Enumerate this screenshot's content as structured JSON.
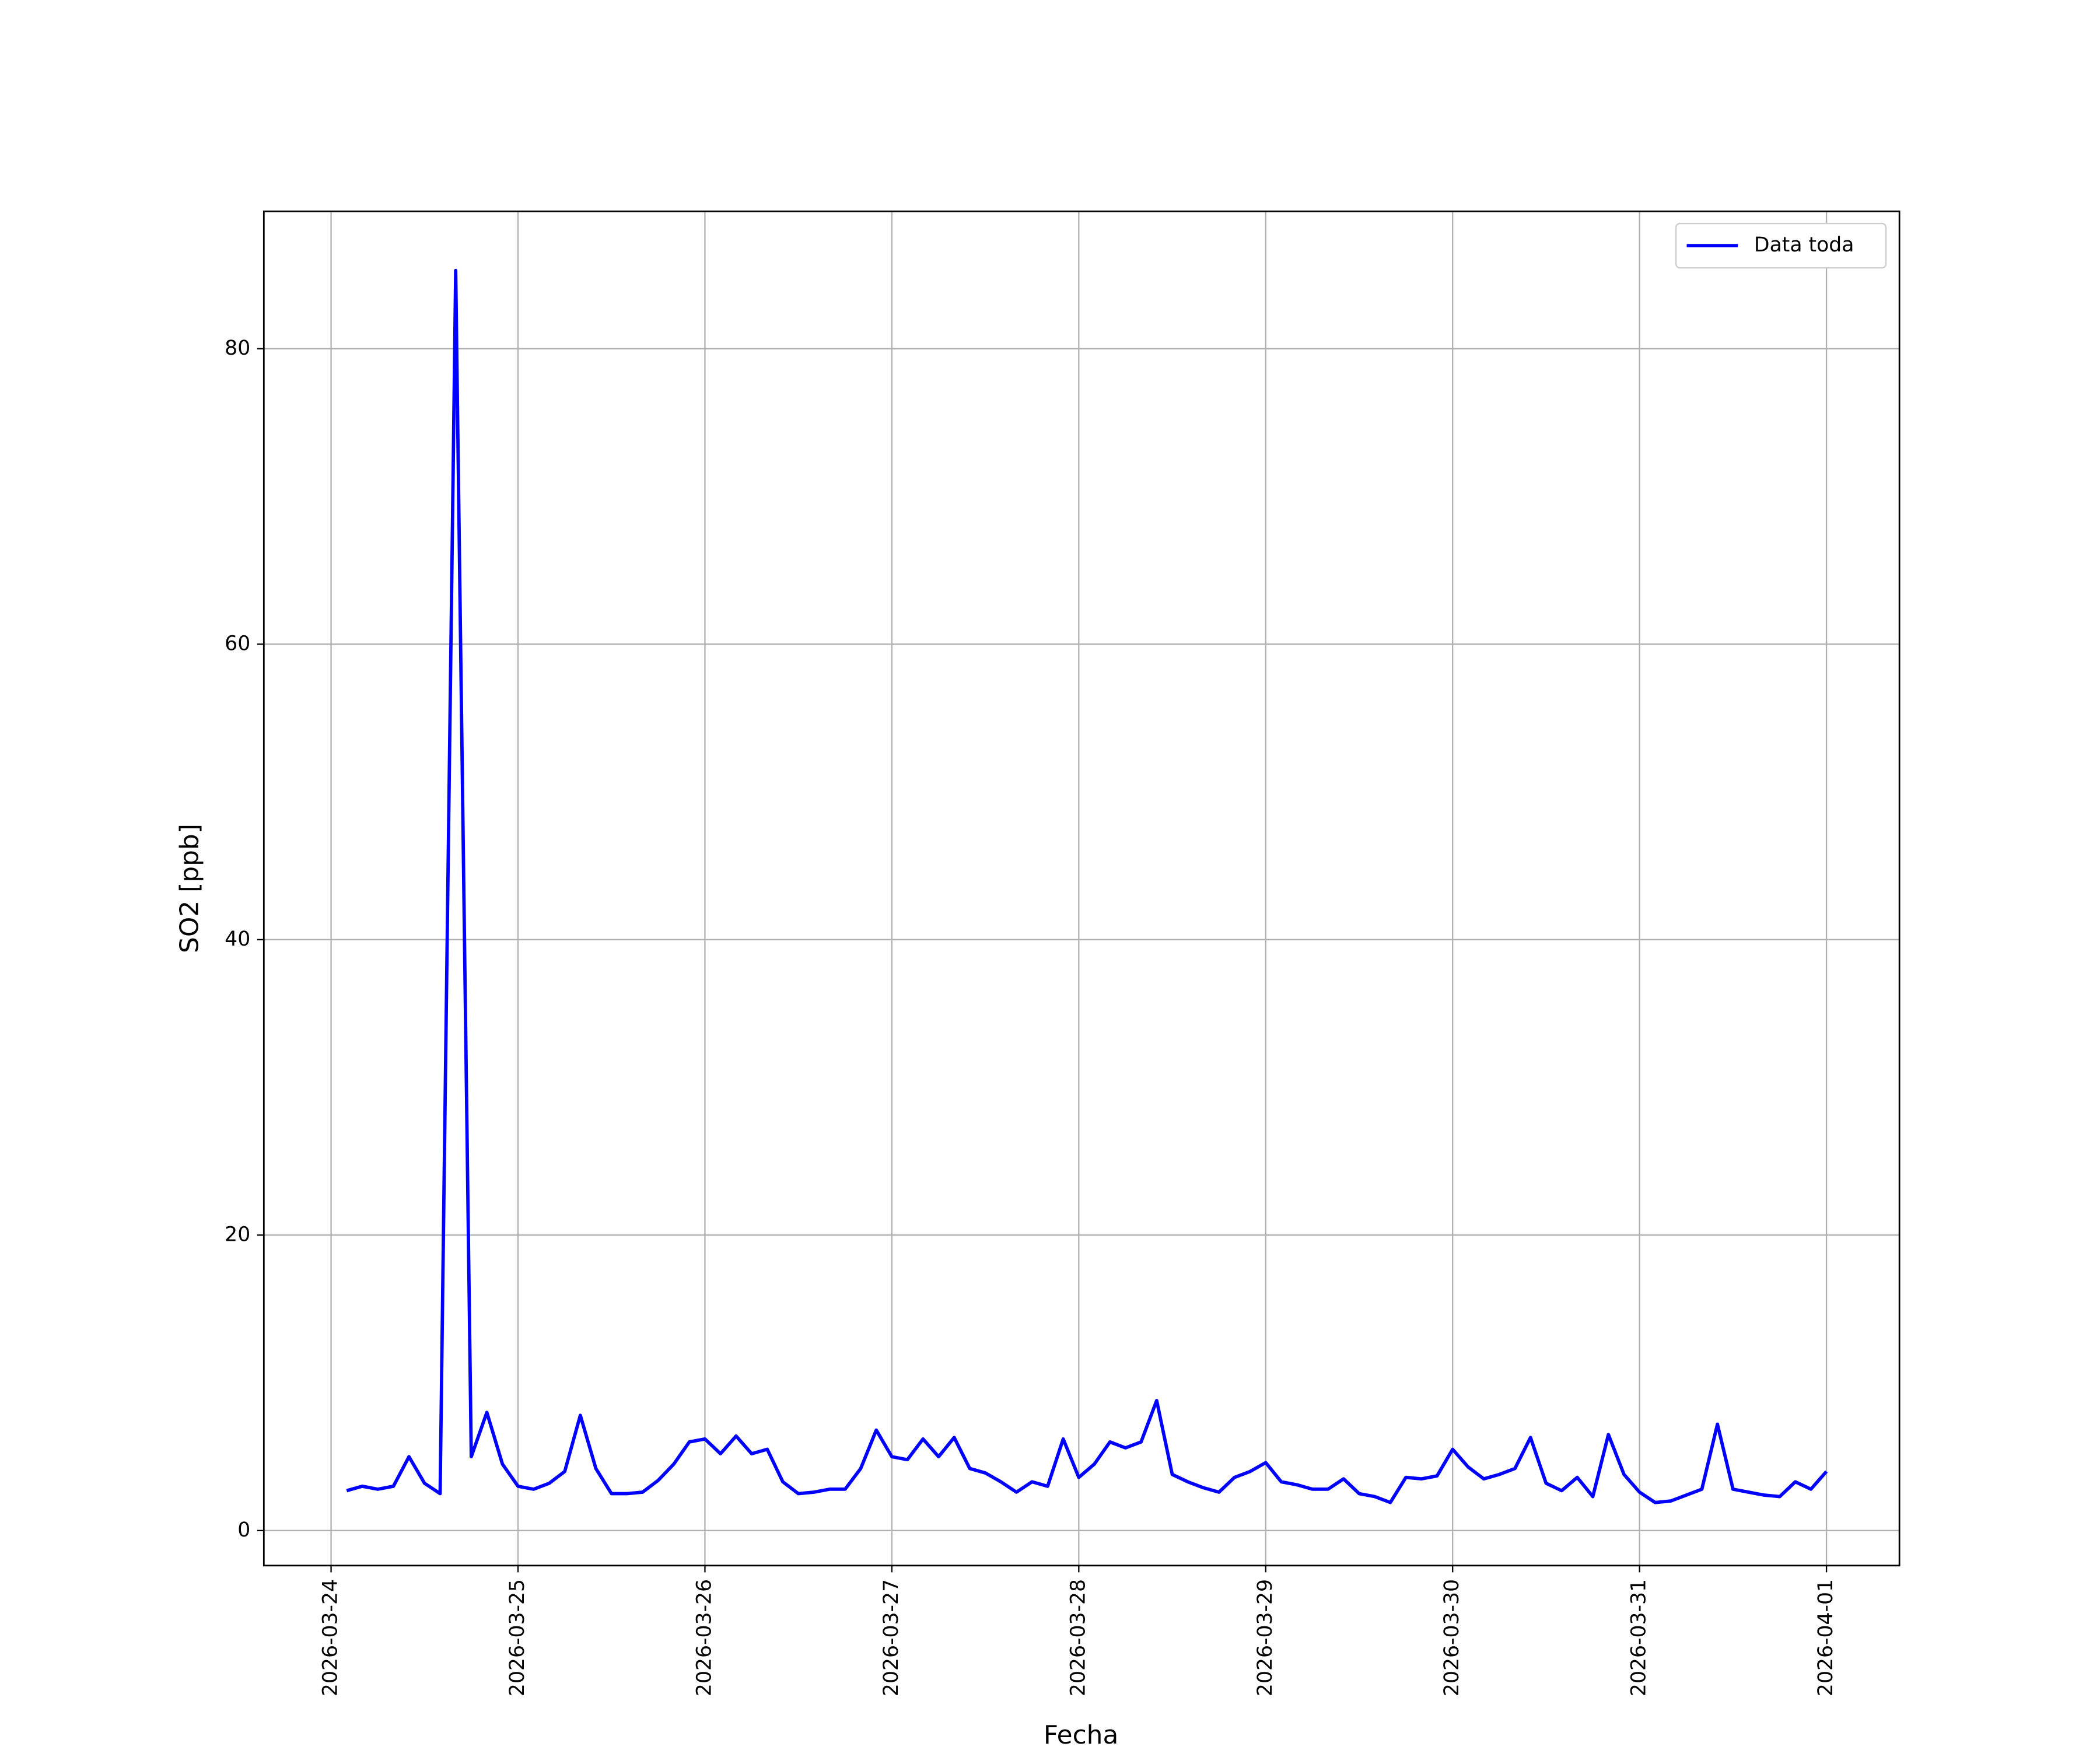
{
  "chart_data": {
    "type": "line",
    "x_label": "Fecha",
    "y_label": "SO2 [ppb]",
    "x": [
      "2026-03-24 02:00",
      "2026-03-24 04:00",
      "2026-03-24 06:00",
      "2026-03-24 08:00",
      "2026-03-24 10:00",
      "2026-03-24 12:00",
      "2026-03-24 14:00",
      "2026-03-24 16:00",
      "2026-03-24 18:00",
      "2026-03-24 20:00",
      "2026-03-24 22:00",
      "2026-03-25 00:00",
      "2026-03-25 02:00",
      "2026-03-25 04:00",
      "2026-03-25 06:00",
      "2026-03-25 08:00",
      "2026-03-25 10:00",
      "2026-03-25 12:00",
      "2026-03-25 14:00",
      "2026-03-25 16:00",
      "2026-03-25 18:00",
      "2026-03-25 20:00",
      "2026-03-25 22:00",
      "2026-03-26 00:00",
      "2026-03-26 02:00",
      "2026-03-26 04:00",
      "2026-03-26 06:00",
      "2026-03-26 08:00",
      "2026-03-26 10:00",
      "2026-03-26 12:00",
      "2026-03-26 14:00",
      "2026-03-26 16:00",
      "2026-03-26 18:00",
      "2026-03-26 20:00",
      "2026-03-26 22:00",
      "2026-03-27 00:00",
      "2026-03-27 02:00",
      "2026-03-27 04:00",
      "2026-03-27 06:00",
      "2026-03-27 08:00",
      "2026-03-27 10:00",
      "2026-03-27 12:00",
      "2026-03-27 14:00",
      "2026-03-27 16:00",
      "2026-03-27 18:00",
      "2026-03-27 20:00",
      "2026-03-27 22:00",
      "2026-03-28 00:00",
      "2026-03-28 02:00",
      "2026-03-28 04:00",
      "2026-03-28 06:00",
      "2026-03-28 08:00",
      "2026-03-28 10:00",
      "2026-03-28 12:00",
      "2026-03-28 14:00",
      "2026-03-28 16:00",
      "2026-03-28 18:00",
      "2026-03-28 20:00",
      "2026-03-28 22:00",
      "2026-03-29 00:00",
      "2026-03-29 02:00",
      "2026-03-29 04:00",
      "2026-03-29 06:00",
      "2026-03-29 08:00",
      "2026-03-29 10:00",
      "2026-03-29 12:00",
      "2026-03-29 14:00",
      "2026-03-29 16:00",
      "2026-03-29 18:00",
      "2026-03-29 20:00",
      "2026-03-29 22:00",
      "2026-03-30 00:00",
      "2026-03-30 02:00",
      "2026-03-30 04:00",
      "2026-03-30 06:00",
      "2026-03-30 08:00",
      "2026-03-30 10:00",
      "2026-03-30 12:00",
      "2026-03-30 14:00",
      "2026-03-30 16:00",
      "2026-03-30 18:00",
      "2026-03-30 20:00",
      "2026-03-30 22:00",
      "2026-03-31 00:00",
      "2026-03-31 02:00",
      "2026-03-31 04:00",
      "2026-03-31 06:00",
      "2026-03-31 08:00",
      "2026-03-31 10:00",
      "2026-03-31 12:00",
      "2026-03-31 14:00",
      "2026-03-31 16:00",
      "2026-03-31 18:00",
      "2026-03-31 20:00",
      "2026-03-31 22:00",
      "2026-04-01 00:00"
    ],
    "series": [
      {
        "name": "Data toda",
        "color": "#0000ff",
        "values": [
          2.7,
          3.0,
          2.8,
          3.0,
          5.0,
          3.2,
          2.5,
          85.3,
          5.0,
          8.0,
          4.5,
          3.0,
          2.8,
          3.2,
          4.0,
          7.8,
          4.2,
          2.5,
          2.5,
          2.6,
          3.4,
          4.5,
          6.0,
          6.2,
          5.2,
          6.4,
          5.2,
          5.5,
          3.3,
          2.5,
          2.6,
          2.8,
          2.8,
          4.2,
          6.8,
          5.0,
          4.8,
          6.2,
          5.0,
          6.3,
          4.2,
          3.9,
          3.3,
          2.6,
          3.3,
          3.0,
          6.2,
          3.6,
          4.5,
          6.0,
          5.6,
          6.0,
          8.8,
          3.8,
          3.3,
          2.9,
          2.6,
          3.6,
          4.0,
          4.6,
          3.3,
          3.1,
          2.8,
          2.8,
          3.5,
          2.5,
          2.3,
          1.9,
          3.6,
          3.5,
          3.7,
          5.5,
          4.3,
          3.5,
          3.8,
          4.2,
          6.3,
          3.2,
          2.7,
          3.6,
          2.3,
          6.5,
          3.8,
          2.6,
          1.9,
          2.0,
          2.4,
          2.8,
          7.2,
          2.8,
          2.6,
          2.4,
          2.3,
          3.3,
          2.8,
          4.0
        ]
      }
    ],
    "xlim": [
      "2026-03-23 15:22",
      "2026-04-01 09:22"
    ],
    "xticks": [
      "2026-03-24",
      "2026-03-25",
      "2026-03-26",
      "2026-03-27",
      "2026-03-28",
      "2026-03-29",
      "2026-03-30",
      "2026-03-31",
      "2026-04-01"
    ],
    "ylim": [
      -2.37,
      89.3
    ],
    "yticks": [
      0,
      20,
      40,
      60,
      80
    ],
    "grid": true,
    "legend": "upper right"
  }
}
